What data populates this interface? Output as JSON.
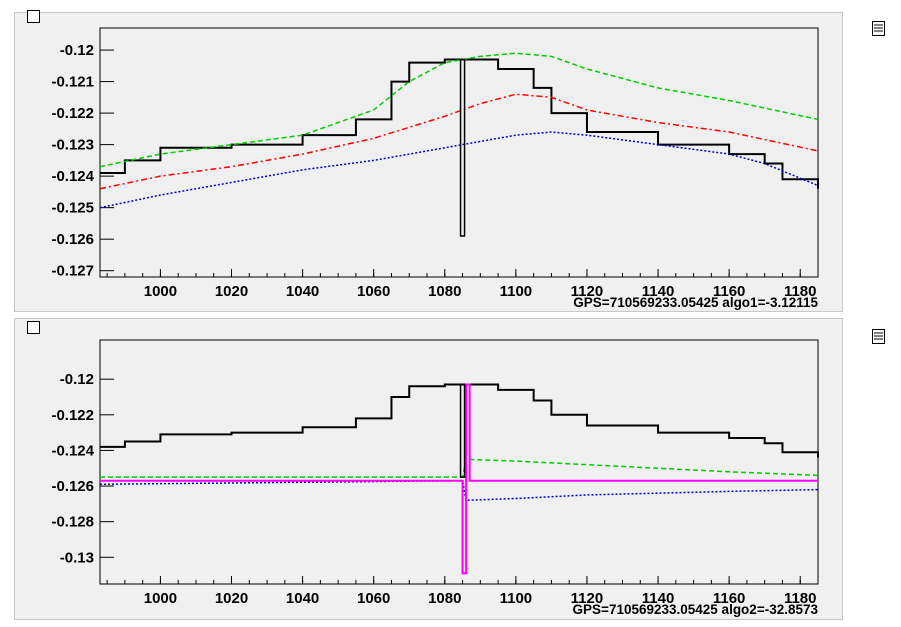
{
  "chart_data": [
    {
      "type": "line",
      "title": "",
      "xlabel": "",
      "ylabel": "",
      "xlim": [
        983,
        1185
      ],
      "ylim": [
        -0.1272,
        -0.1193
      ],
      "x_ticks": [
        1000,
        1020,
        1040,
        1060,
        1080,
        1100,
        1120,
        1140,
        1160,
        1180
      ],
      "x_tick_labels": [
        "1000",
        "1020",
        "1040",
        "1060",
        "1080",
        "1100",
        "1120",
        "1140",
        "1160",
        "1180"
      ],
      "y_ticks": [
        -0.12,
        -0.121,
        -0.122,
        -0.123,
        -0.124,
        -0.125,
        -0.126,
        -0.127
      ],
      "y_tick_labels": [
        "-0.12",
        "-0.121",
        "-0.122",
        "-0.123",
        "-0.124",
        "-0.125",
        "-0.126",
        "-0.127"
      ],
      "footer": "GPS=710569233.05425  algo1=-3.12115",
      "glitch": {
        "x": 1085,
        "low": -0.1259
      },
      "series": [
        {
          "color": "#000000",
          "style": "step",
          "x": [
            983,
            990,
            1000,
            1020,
            1040,
            1055,
            1065,
            1070,
            1080,
            1085,
            1095,
            1105,
            1110,
            1120,
            1140,
            1160,
            1170,
            1175,
            1185
          ],
          "y": [
            -0.1239,
            -0.1235,
            -0.1231,
            -0.123,
            -0.1227,
            -0.1222,
            -0.121,
            -0.1204,
            -0.1203,
            -0.1203,
            -0.1206,
            -0.1212,
            -0.122,
            -0.1226,
            -0.123,
            -0.1233,
            -0.1236,
            -0.1241,
            -0.1244
          ]
        },
        {
          "color": "#00cc00",
          "style": "dash",
          "x": [
            983,
            1000,
            1020,
            1040,
            1060,
            1070,
            1080,
            1090,
            1100,
            1110,
            1120,
            1140,
            1160,
            1185
          ],
          "y": [
            -0.1237,
            -0.1233,
            -0.123,
            -0.1227,
            -0.1219,
            -0.121,
            -0.1204,
            -0.1202,
            -0.1201,
            -0.1202,
            -0.1206,
            -0.1212,
            -0.1216,
            -0.1222
          ]
        },
        {
          "color": "#ff0000",
          "style": "dashdot",
          "x": [
            983,
            1000,
            1020,
            1040,
            1060,
            1080,
            1090,
            1100,
            1110,
            1120,
            1140,
            1160,
            1185
          ],
          "y": [
            -0.1244,
            -0.124,
            -0.1237,
            -0.1233,
            -0.1228,
            -0.1221,
            -0.1217,
            -0.1214,
            -0.1215,
            -0.1219,
            -0.1223,
            -0.1226,
            -0.1232
          ]
        },
        {
          "color": "#0000cc",
          "style": "dot",
          "x": [
            983,
            1000,
            1020,
            1040,
            1060,
            1080,
            1090,
            1100,
            1110,
            1120,
            1140,
            1160,
            1170,
            1185
          ],
          "y": [
            -0.125,
            -0.1246,
            -0.1242,
            -0.1238,
            -0.1235,
            -0.1231,
            -0.1229,
            -0.1227,
            -0.1226,
            -0.1227,
            -0.123,
            -0.1233,
            -0.1236,
            -0.1243
          ]
        }
      ]
    },
    {
      "type": "line",
      "title": "",
      "xlabel": "",
      "ylabel": "",
      "xlim": [
        983,
        1185
      ],
      "ylim": [
        -0.1315,
        -0.1178
      ],
      "x_ticks": [
        1000,
        1020,
        1040,
        1060,
        1080,
        1100,
        1120,
        1140,
        1160,
        1180
      ],
      "x_tick_labels": [
        "1000",
        "1020",
        "1040",
        "1060",
        "1080",
        "1100",
        "1120",
        "1140",
        "1160",
        "1180"
      ],
      "y_ticks": [
        -0.12,
        -0.122,
        -0.124,
        -0.126,
        -0.128,
        -0.13
      ],
      "y_tick_labels": [
        "-0.12",
        "-0.122",
        "-0.124",
        "-0.126",
        "-0.128",
        "-0.13"
      ],
      "footer": "GPS=710569233.05425  algo2=-32.8573",
      "glitch": {
        "x": 1085,
        "low": -0.1255
      },
      "series": [
        {
          "color": "#000000",
          "style": "step",
          "x": [
            983,
            990,
            1000,
            1020,
            1040,
            1055,
            1065,
            1070,
            1080,
            1085,
            1095,
            1105,
            1110,
            1120,
            1140,
            1160,
            1170,
            1175,
            1185
          ],
          "y": [
            -0.1238,
            -0.1235,
            -0.1231,
            -0.123,
            -0.1227,
            -0.1222,
            -0.121,
            -0.1204,
            -0.1203,
            -0.1203,
            -0.1206,
            -0.1212,
            -0.122,
            -0.1226,
            -0.123,
            -0.1233,
            -0.1236,
            -0.1241,
            -0.1244
          ]
        },
        {
          "color": "#00cc00",
          "style": "dash",
          "x": [
            983,
            1085,
            1086,
            1100,
            1120,
            1140,
            1160,
            1185
          ],
          "y": [
            -0.1255,
            -0.1255,
            -0.1245,
            -0.1246,
            -0.1248,
            -0.125,
            -0.1252,
            -0.1254
          ]
        },
        {
          "color": "#0000cc",
          "style": "dot",
          "x": [
            983,
            1085,
            1086,
            1100,
            1120,
            1140,
            1160,
            1185
          ],
          "y": [
            -0.1259,
            -0.1257,
            -0.1268,
            -0.1267,
            -0.1265,
            -0.1264,
            -0.1263,
            -0.1262
          ]
        },
        {
          "color": "#ff00ff",
          "style": "step",
          "x": [
            983,
            1084,
            1085,
            1086,
            1087,
            1185
          ],
          "y": [
            -0.1257,
            -0.1257,
            -0.1309,
            -0.1203,
            -0.1257,
            -0.1257
          ]
        }
      ]
    }
  ]
}
